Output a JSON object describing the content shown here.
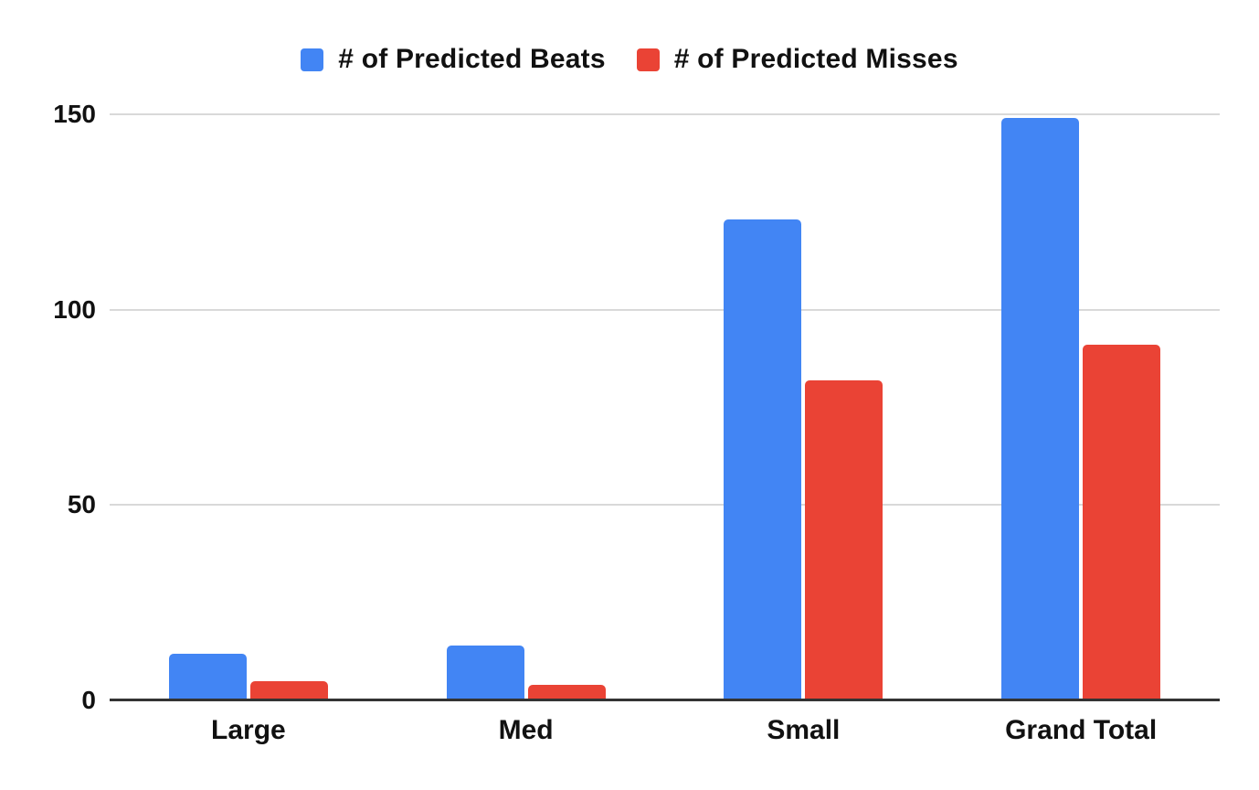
{
  "chart_data": {
    "type": "bar",
    "title": "",
    "xlabel": "",
    "ylabel": "",
    "categories": [
      "Large",
      "Med",
      "Small",
      "Grand Total"
    ],
    "series": [
      {
        "name": "# of Predicted Beats",
        "color": "#4285F4",
        "values": [
          12,
          14,
          123,
          149
        ]
      },
      {
        "name": "# of Predicted Misses",
        "color": "#EA4335",
        "values": [
          5,
          4,
          82,
          91
        ]
      }
    ],
    "ylim": [
      0,
      150
    ],
    "yticks": [
      0,
      50,
      100,
      150
    ],
    "grid": true,
    "legend_position": "top"
  },
  "colors": {
    "background": "#ffffff",
    "gridline": "#d9d9d9",
    "axis_line": "#333333",
    "label_text": "#111111"
  }
}
